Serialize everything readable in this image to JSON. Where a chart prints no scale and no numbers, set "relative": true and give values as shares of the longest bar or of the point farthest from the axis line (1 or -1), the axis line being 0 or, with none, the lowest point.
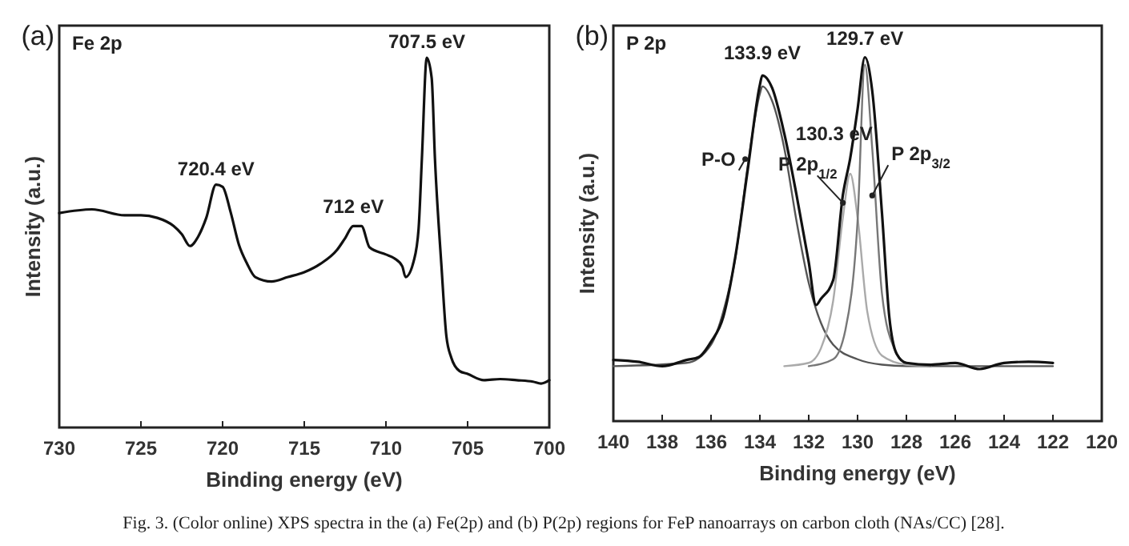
{
  "chart_data": [
    {
      "type": "line",
      "title": "Fe 2p",
      "xlabel": "Binding energy (eV)",
      "ylabel": "Intensity (a.u.)",
      "relative": true,
      "xlim": [
        730,
        700
      ],
      "xticks": [
        730,
        725,
        720,
        715,
        710,
        705,
        700
      ],
      "annotations": [
        "(a)",
        {
          "text": "720.4 eV",
          "x": 720.4,
          "y": 0.657
        },
        {
          "text": "712 eV",
          "x": 712,
          "y": 0.545
        },
        {
          "text": "707.5 eV",
          "x": 707.5,
          "y": 1
        },
        "Fig. 3. (Color online) XPS spectra in the (a) Fe(2p) and (b) P(2p) regions for FeP nanoarrays on carbon cloth (NAs/CC) [28]."
      ],
      "series": [
        {
          "color": "#111111",
          "x": [
            730,
            728,
            726,
            725,
            724,
            723,
            722.5,
            722,
            721.5,
            721,
            720.4,
            720,
            719.5,
            719,
            718.5,
            718,
            717,
            716,
            715,
            714,
            713,
            712.5,
            712,
            711.5,
            711,
            710,
            709.5,
            709,
            708.8,
            708.3,
            708,
            707.8,
            707.5,
            707.2,
            707,
            706.6,
            706.3,
            706,
            705.5,
            705,
            704,
            703,
            702,
            701,
            700.5,
            700
          ],
          "values": [
            0.58,
            0.59,
            0.574,
            0.574,
            0.567,
            0.545,
            0.523,
            0.491,
            0.516,
            0.567,
            0.657,
            0.651,
            0.581,
            0.494,
            0.443,
            0.407,
            0.395,
            0.407,
            0.42,
            0.443,
            0.48,
            0.512,
            0.545,
            0.545,
            0.487,
            0.468,
            0.458,
            0.436,
            0.407,
            0.45,
            0.538,
            0.727,
            1,
            0.945,
            0.727,
            0.436,
            0.247,
            0.189,
            0.153,
            0.145,
            0.128,
            0.131,
            0.128,
            0.124,
            0.119,
            0.128
          ]
        }
      ]
    },
    {
      "type": "line",
      "title": "P 2p",
      "xlabel": "Binding energy (eV)",
      "ylabel": "Intensity (a.u.)",
      "relative": true,
      "xlim": [
        140,
        120
      ],
      "xticks": [
        140,
        138,
        136,
        134,
        132,
        130,
        128,
        126,
        124,
        122,
        120
      ],
      "annotations": [
        "(b)",
        {
          "text": "133.9 eV",
          "x": 133.9,
          "y": 0.95
        },
        {
          "text": "129.7 eV",
          "x": 129.7,
          "y": 1
        },
        {
          "text": "130.3 eV",
          "x": 130.3,
          "y": 0.72
        },
        {
          "text": "P-O",
          "x": 134.6,
          "y": 0.72
        },
        {
          "text": "P 2p$_{1/2}$",
          "x": 130.6,
          "y": 0.6
        },
        {
          "text": "P 2p$_{3/2}$",
          "x": 129.4,
          "y": 0.62
        }
      ],
      "series": [
        {
          "color": "#555555",
          "x": [
            140,
            137,
            136,
            135.5,
            135,
            134.5,
            134,
            133.9,
            133.5,
            133,
            132.5,
            132,
            131.5,
            131,
            130,
            129,
            128,
            122
          ],
          "values": [
            0.151,
            0.16,
            0.21,
            0.3,
            0.45,
            0.7,
            0.9,
            0.92,
            0.88,
            0.75,
            0.55,
            0.38,
            0.27,
            0.21,
            0.17,
            0.155,
            0.151,
            0.151
          ]
        },
        {
          "color": "#aaaaaa",
          "x": [
            133,
            132,
            131.5,
            131,
            130.6,
            130.3,
            130,
            129.6,
            129,
            128,
            127
          ],
          "values": [
            0.151,
            0.16,
            0.2,
            0.33,
            0.56,
            0.68,
            0.56,
            0.3,
            0.18,
            0.155,
            0.151
          ]
        },
        {
          "color": "#777777",
          "x": [
            132,
            131,
            130.5,
            130,
            129.7,
            129.4,
            129,
            128.5,
            128,
            127
          ],
          "values": [
            0.151,
            0.17,
            0.25,
            0.55,
            0.98,
            0.75,
            0.35,
            0.2,
            0.16,
            0.151
          ]
        },
        {
          "color": "#111111",
          "x": [
            140,
            139,
            138,
            137,
            136.5,
            136,
            135.5,
            135,
            134.5,
            134,
            133.9,
            133.5,
            133,
            132.5,
            132,
            131.7,
            131.5,
            131,
            130.6,
            130.3,
            130,
            129.7,
            129.4,
            129,
            128.7,
            128.4,
            128,
            127,
            126,
            125,
            124,
            123,
            122
          ],
          "values": [
            0.168,
            0.163,
            0.151,
            0.168,
            0.176,
            0.218,
            0.286,
            0.454,
            0.689,
            0.924,
            0.95,
            0.916,
            0.79,
            0.622,
            0.437,
            0.319,
            0.336,
            0.387,
            0.622,
            0.723,
            0.857,
            1,
            0.908,
            0.571,
            0.286,
            0.185,
            0.16,
            0.155,
            0.16,
            0.143,
            0.16,
            0.163,
            0.16
          ]
        }
      ]
    }
  ]
}
